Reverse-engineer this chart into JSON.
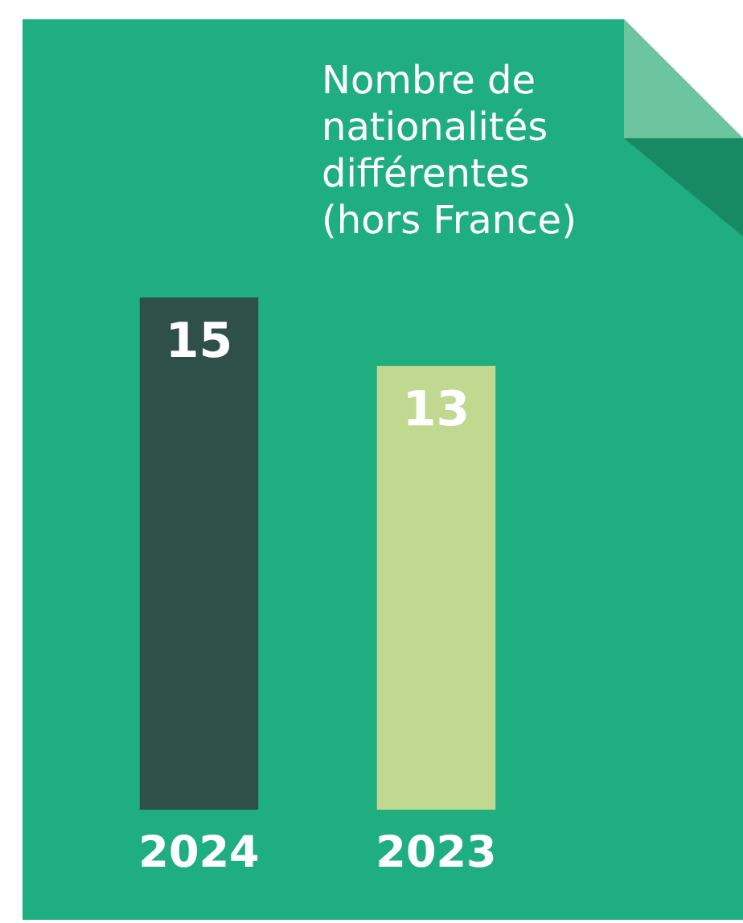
{
  "chart_data": {
    "type": "bar",
    "title": "Nombre de nationalités différentes (hors France)",
    "categories": [
      "2024",
      "2023"
    ],
    "values": [
      15,
      13
    ],
    "colors": [
      "#2e5048",
      "#c0d890"
    ],
    "ylim": [
      0,
      15
    ],
    "data_labels": true,
    "grid": false,
    "legend": false
  }
}
